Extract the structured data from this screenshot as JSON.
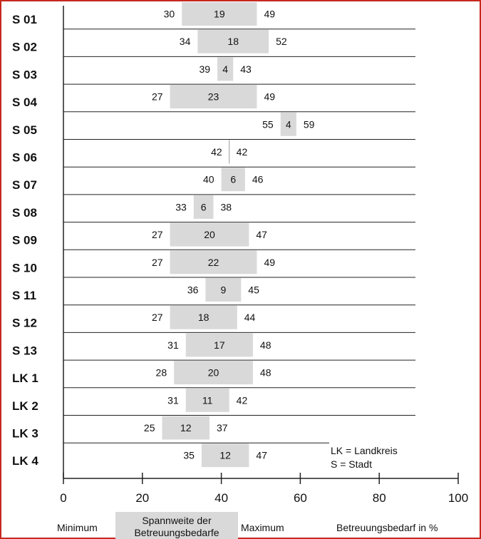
{
  "chart_data": {
    "type": "bar",
    "subtype": "floating-range",
    "categories": [
      "S 01",
      "S 02",
      "S 03",
      "S 04",
      "S 05",
      "S 06",
      "S 07",
      "S 08",
      "S 09",
      "S 10",
      "S 11",
      "S 12",
      "S 13",
      "LK 1",
      "LK 2",
      "LK 3",
      "LK 4"
    ],
    "minimum": [
      30,
      34,
      39,
      27,
      55,
      42,
      40,
      33,
      27,
      27,
      36,
      27,
      31,
      28,
      31,
      25,
      35
    ],
    "maximum": [
      49,
      52,
      43,
      49,
      59,
      42,
      46,
      38,
      47,
      49,
      45,
      44,
      48,
      48,
      42,
      37,
      47
    ],
    "range": [
      19,
      18,
      4,
      23,
      4,
      0,
      6,
      6,
      20,
      22,
      9,
      18,
      17,
      20,
      11,
      12,
      12
    ],
    "range_labels": [
      "19",
      "18",
      "4",
      "23",
      "4",
      "",
      "6",
      "6",
      "20",
      "22",
      "9",
      "18",
      "17",
      "20",
      "11",
      "12",
      "12"
    ],
    "xlim": [
      0,
      100
    ],
    "xticks": [
      0,
      20,
      40,
      60,
      80,
      100
    ],
    "xlabel": "Betreuungsbedarf in %",
    "grid": "horizontal separators between rows",
    "annotation": [
      "LK = Landkreis",
      "S = Stadt"
    ],
    "legend": {
      "minimum": "Minimum",
      "range_line1": "Spannweite der",
      "range_line2": "Betreuungsbedarfe",
      "maximum": "Maximum"
    },
    "colors": {
      "bar": "#d9d9d9",
      "frame": "#c8281e",
      "line": "#222222"
    }
  }
}
